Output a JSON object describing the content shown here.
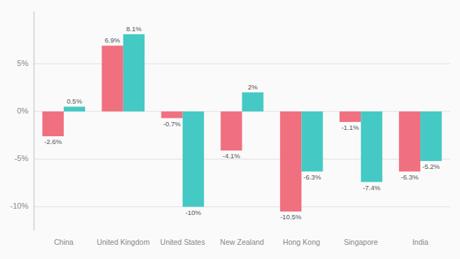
{
  "chart_data": {
    "type": "bar",
    "categories": [
      "China",
      "United Kingdom",
      "United States",
      "New Zealand",
      "Hong Kong",
      "Singapore",
      "India"
    ],
    "series": [
      {
        "color": "#F07080",
        "values": [
          -2.6,
          6.9,
          -0.7,
          -4.1,
          -10.5,
          -1.1,
          -6.3
        ],
        "value_labels": [
          "-2.6%",
          "6.9%",
          "-0.7%",
          "-4.1%",
          "-10.5%",
          "-1.1%",
          "-6.3%"
        ]
      },
      {
        "color": "#45C9C4",
        "values": [
          0.5,
          8.1,
          -10.0,
          2.0,
          -6.3,
          -7.4,
          -5.2
        ],
        "value_labels": [
          "0.5%",
          "8.1%",
          "-10%",
          "2%",
          "-6.3%",
          "-7.4%",
          "-5.2%"
        ]
      }
    ],
    "ylim": [
      -12.5,
      10.5
    ],
    "yticks": [
      {
        "value": -10,
        "label": "-10%"
      },
      {
        "value": -5,
        "label": "-5%"
      },
      {
        "value": 0,
        "label": "0%"
      },
      {
        "value": 5,
        "label": "5%"
      }
    ],
    "grid": true,
    "data_labels": true
  }
}
